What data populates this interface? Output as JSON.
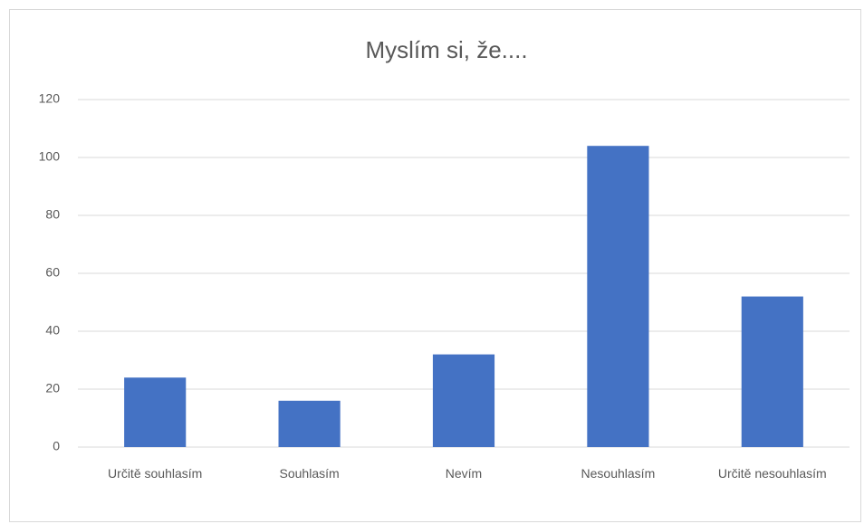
{
  "chart_data": {
    "type": "bar",
    "title": "Myslím si, že....",
    "categories": [
      "Určitě souhlasím",
      "Souhlasím",
      "Nevím",
      "Nesouhlasím",
      "Určitě nesouhlasím"
    ],
    "values": [
      24,
      16,
      32,
      104,
      52
    ],
    "color": "#4472c4",
    "ylim": [
      0,
      120
    ],
    "yticks": [
      0,
      20,
      40,
      60,
      80,
      100,
      120
    ],
    "grid": true
  }
}
